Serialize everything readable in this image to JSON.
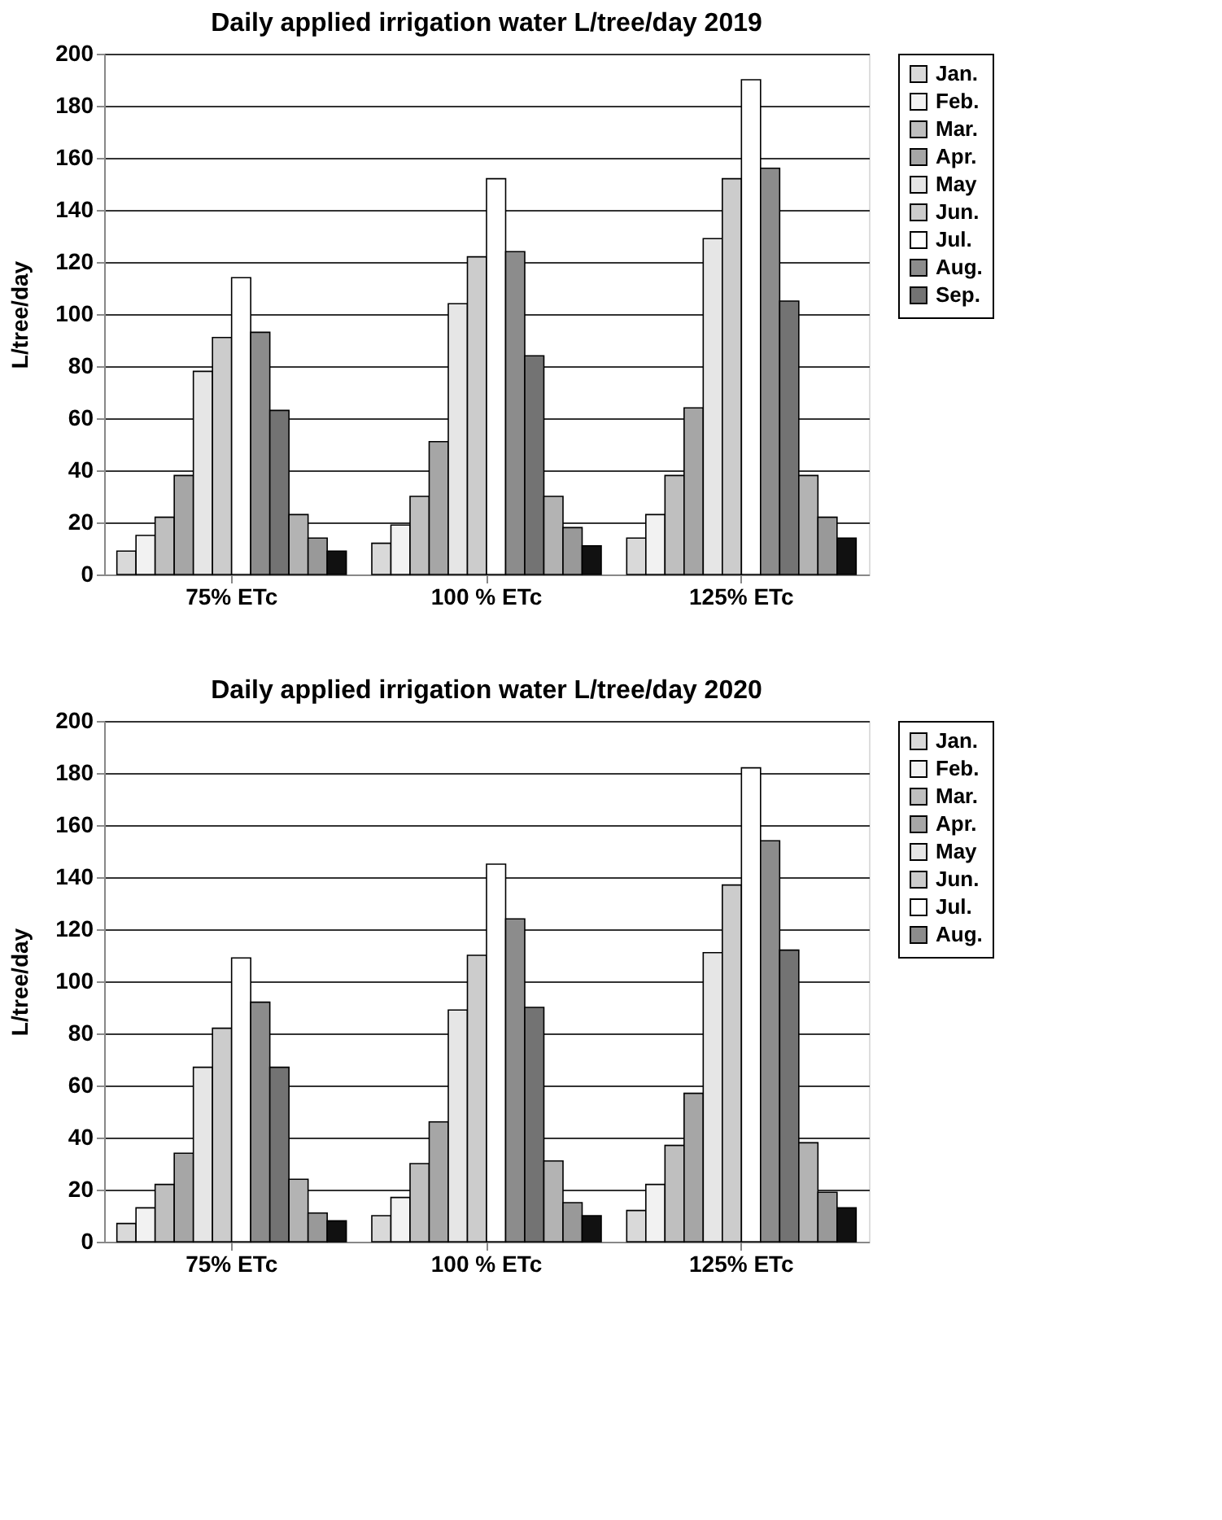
{
  "chart_data": [
    {
      "type": "bar",
      "title": "Daily applied irrigation water L/tree/day   2019",
      "ylabel": "L/tree/day",
      "categories": [
        "75% ETc",
        "100 %  ETc",
        "125% ETc"
      ],
      "ylim": [
        0,
        200
      ],
      "yticks": [
        0,
        20,
        40,
        60,
        80,
        100,
        120,
        140,
        160,
        180,
        200
      ],
      "grid": "y",
      "legend": "right",
      "series": [
        {
          "name": "Jan.",
          "color": "#d9d9d9",
          "values": [
            9,
            12,
            14
          ]
        },
        {
          "name": "Feb.",
          "color": "#f2f2f2",
          "values": [
            15,
            19,
            23
          ]
        },
        {
          "name": "Mar.",
          "color": "#bfbfbf",
          "values": [
            22,
            30,
            38
          ]
        },
        {
          "name": "Apr.",
          "color": "#a6a6a6",
          "values": [
            38,
            51,
            64
          ]
        },
        {
          "name": "May",
          "color": "#e6e6e6",
          "values": [
            78,
            104,
            129
          ]
        },
        {
          "name": "Jun.",
          "color": "#cccccc",
          "values": [
            91,
            122,
            152
          ]
        },
        {
          "name": "Jul.",
          "color": "#ffffff",
          "values": [
            114,
            152,
            190
          ]
        },
        {
          "name": "Aug.",
          "color": "#8c8c8c",
          "values": [
            93,
            124,
            156
          ]
        },
        {
          "name": "Sep.",
          "color": "#737373",
          "values": [
            63,
            84,
            105
          ]
        },
        {
          "color": "#b3b3b3",
          "values": [
            23,
            30,
            38
          ]
        },
        {
          "color": "#999999",
          "values": [
            14,
            18,
            22
          ]
        },
        {
          "color": "#111111",
          "values": [
            9,
            11,
            14
          ]
        }
      ]
    },
    {
      "type": "bar",
      "title": "Daily  applied irrigation water L/tree/day    2020",
      "ylabel": "L/tree/day",
      "categories": [
        "75% ETc",
        "100 %  ETc",
        "125% ETc"
      ],
      "ylim": [
        0,
        200
      ],
      "yticks": [
        0,
        20,
        40,
        60,
        80,
        100,
        120,
        140,
        160,
        180,
        200
      ],
      "grid": "y",
      "legend": "right",
      "series": [
        {
          "name": "Jan.",
          "color": "#d9d9d9",
          "values": [
            7,
            10,
            12
          ]
        },
        {
          "name": "Feb.",
          "color": "#f2f2f2",
          "values": [
            13,
            17,
            22
          ]
        },
        {
          "name": "Mar.",
          "color": "#bfbfbf",
          "values": [
            22,
            30,
            37
          ]
        },
        {
          "name": "Apr.",
          "color": "#a6a6a6",
          "values": [
            34,
            46,
            57
          ]
        },
        {
          "name": "May",
          "color": "#e6e6e6",
          "values": [
            67,
            89,
            111
          ]
        },
        {
          "name": "Jun.",
          "color": "#cccccc",
          "values": [
            82,
            110,
            137
          ]
        },
        {
          "name": "Jul.",
          "color": "#ffffff",
          "values": [
            109,
            145,
            182
          ]
        },
        {
          "name": "Aug.",
          "color": "#8c8c8c",
          "values": [
            92,
            124,
            154
          ]
        },
        {
          "color": "#737373",
          "values": [
            67,
            90,
            112
          ]
        },
        {
          "color": "#b3b3b3",
          "values": [
            24,
            31,
            38
          ]
        },
        {
          "color": "#999999",
          "values": [
            11,
            15,
            19
          ]
        },
        {
          "color": "#111111",
          "values": [
            8,
            10,
            13
          ]
        }
      ]
    }
  ]
}
